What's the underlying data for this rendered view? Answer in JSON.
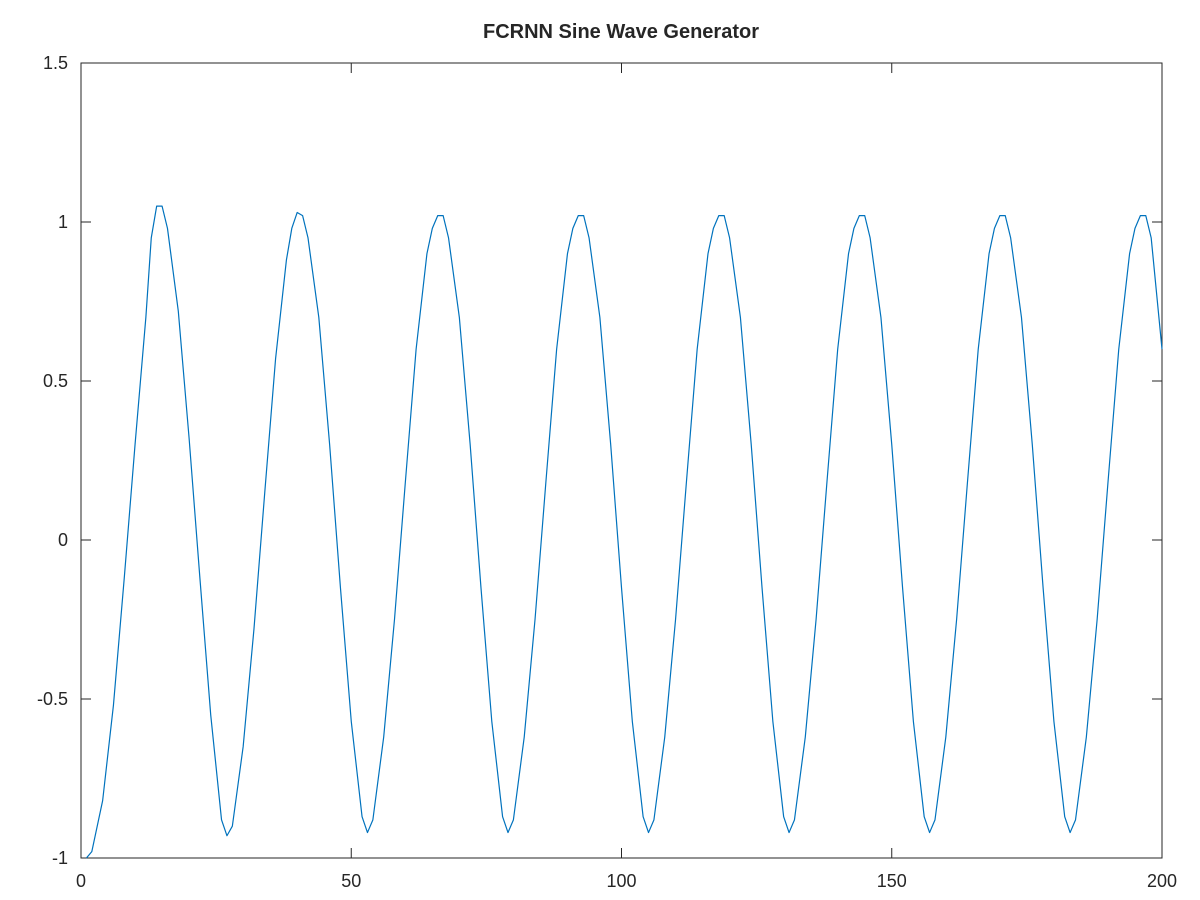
{
  "chart_data": {
    "type": "line",
    "title": "FCRNN Sine Wave Generator",
    "xlabel": "",
    "ylabel": "",
    "xlim": [
      0,
      200
    ],
    "ylim": [
      -1,
      1.5
    ],
    "x_ticks": [
      0,
      50,
      100,
      150,
      200
    ],
    "x_tick_labels": [
      "0",
      "50",
      "100",
      "150",
      "200"
    ],
    "y_ticks": [
      -1,
      -0.5,
      0,
      0.5,
      1,
      1.5
    ],
    "y_tick_labels": [
      "-1",
      "-0.5",
      "0",
      "0.5",
      "1",
      "1.5"
    ],
    "grid": false,
    "series": [
      {
        "color": "#0072bd",
        "x": [
          1,
          2,
          4,
          6,
          8,
          10,
          12,
          13,
          14,
          15,
          16,
          18,
          20,
          22,
          24,
          26,
          27,
          28,
          30,
          32,
          34,
          36,
          38,
          39,
          40,
          41,
          42,
          44,
          46,
          48,
          50,
          52,
          53,
          54,
          56,
          58,
          60,
          62,
          64,
          65,
          66,
          67,
          68,
          70,
          72,
          74,
          76,
          78,
          79,
          80,
          82,
          84,
          86,
          88,
          90,
          91,
          92,
          93,
          94,
          96,
          98,
          100,
          102,
          104,
          105,
          106,
          108,
          110,
          112,
          114,
          116,
          117,
          118,
          119,
          120,
          122,
          124,
          126,
          128,
          130,
          131,
          132,
          134,
          136,
          138,
          140,
          142,
          143,
          144,
          145,
          146,
          148,
          150,
          152,
          154,
          156,
          157,
          158,
          160,
          162,
          164,
          166,
          168,
          169,
          170,
          171,
          172,
          174,
          176,
          178,
          180,
          182,
          183,
          184,
          186,
          188,
          190,
          192,
          194,
          195,
          196,
          197,
          198,
          200
        ],
        "y": [
          -1.0,
          -0.98,
          -0.82,
          -0.52,
          -0.12,
          0.3,
          0.7,
          0.95,
          1.05,
          1.05,
          0.98,
          0.72,
          0.32,
          -0.12,
          -0.55,
          -0.88,
          -0.93,
          -0.9,
          -0.65,
          -0.28,
          0.15,
          0.57,
          0.88,
          0.98,
          1.03,
          1.02,
          0.95,
          0.7,
          0.3,
          -0.15,
          -0.57,
          -0.87,
          -0.92,
          -0.88,
          -0.62,
          -0.25,
          0.18,
          0.6,
          0.9,
          0.98,
          1.02,
          1.02,
          0.95,
          0.7,
          0.3,
          -0.15,
          -0.57,
          -0.87,
          -0.92,
          -0.88,
          -0.62,
          -0.25,
          0.18,
          0.6,
          0.9,
          0.98,
          1.02,
          1.02,
          0.95,
          0.7,
          0.3,
          -0.15,
          -0.57,
          -0.87,
          -0.92,
          -0.88,
          -0.62,
          -0.25,
          0.18,
          0.6,
          0.9,
          0.98,
          1.02,
          1.02,
          0.95,
          0.7,
          0.3,
          -0.15,
          -0.57,
          -0.87,
          -0.92,
          -0.88,
          -0.62,
          -0.25,
          0.18,
          0.6,
          0.9,
          0.98,
          1.02,
          1.02,
          0.95,
          0.7,
          0.3,
          -0.15,
          -0.57,
          -0.87,
          -0.92,
          -0.88,
          -0.62,
          -0.25,
          0.18,
          0.6,
          0.9,
          0.98,
          1.02,
          1.02,
          0.95,
          0.7,
          0.3,
          -0.15,
          -0.57,
          -0.87,
          -0.92,
          -0.88,
          -0.62,
          -0.25,
          0.18,
          0.6,
          0.9,
          0.98,
          1.02,
          1.02,
          0.95,
          0.6
        ]
      }
    ]
  }
}
